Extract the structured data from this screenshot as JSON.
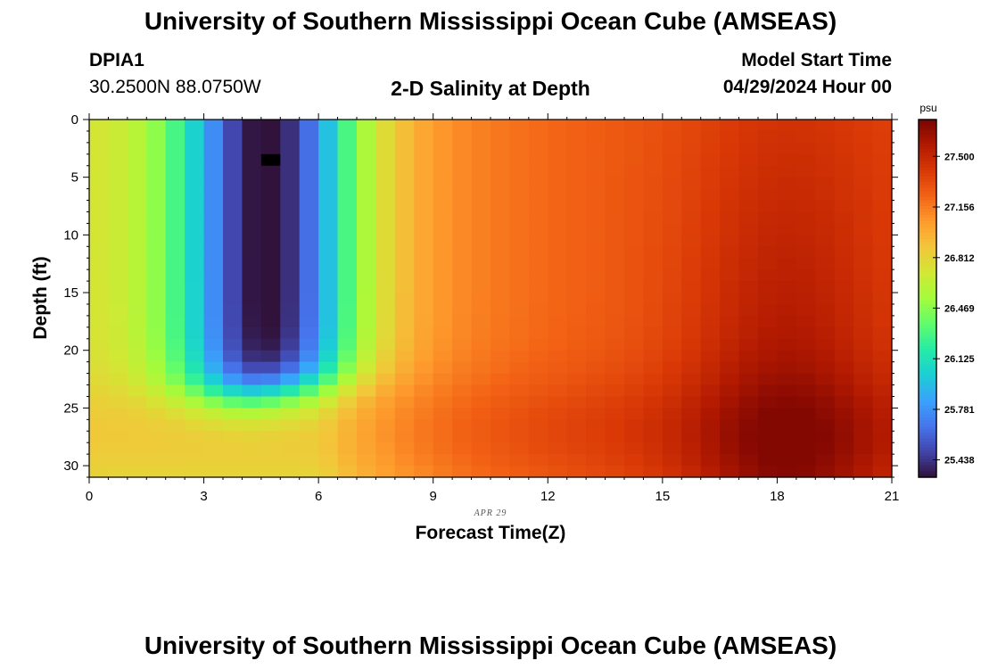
{
  "title": "University of Southern Mississippi Ocean Cube (AMSEAS)",
  "footer_title": "University of Southern Mississippi Ocean Cube (AMSEAS)",
  "station": {
    "id": "DPIA1",
    "coords": "30.2500N  88.0750W"
  },
  "plot_title": "2-D Salinity at Depth",
  "model_start": {
    "label": "Model Start Time",
    "value": "04/29/2024 Hour 00"
  },
  "chart_data": {
    "type": "heatmap",
    "title": "2-D Salinity at Depth",
    "xlabel": "Forecast Time(Z)",
    "ylabel": "Depth (ft)",
    "x_ticks": [
      "0",
      "3",
      "6",
      "9",
      "12",
      "15",
      "18",
      "21"
    ],
    "y_ticks": [
      "0",
      "5",
      "10",
      "15",
      "20",
      "25",
      "30"
    ],
    "xlim": [
      0,
      21
    ],
    "ylim": [
      0,
      31
    ],
    "date_annotation": "APR 29",
    "colorbar": {
      "unit": "psu",
      "ticks": [
        "27.500",
        "27.156",
        "26.812",
        "26.469",
        "26.125",
        "25.781",
        "25.438"
      ],
      "tick_values": [
        27.5,
        27.156,
        26.812,
        26.469,
        26.125,
        25.781,
        25.438
      ],
      "range": [
        25.32,
        27.75
      ],
      "colors": [
        "#30123b",
        "#4145ab",
        "#4675ed",
        "#39a2fc",
        "#1bcfd4",
        "#24eca6",
        "#61fc6c",
        "#a4fc3b",
        "#d1e834",
        "#f3c63a",
        "#fe9b2d",
        "#f36315",
        "#d93806",
        "#b11901",
        "#7a0402"
      ]
    },
    "grid": {
      "n_times": 42,
      "n_depths": 31,
      "min_value": 25.32,
      "max_value": 27.72
    },
    "missing_cell": {
      "time_index": 9,
      "depth_index": 3
    }
  }
}
